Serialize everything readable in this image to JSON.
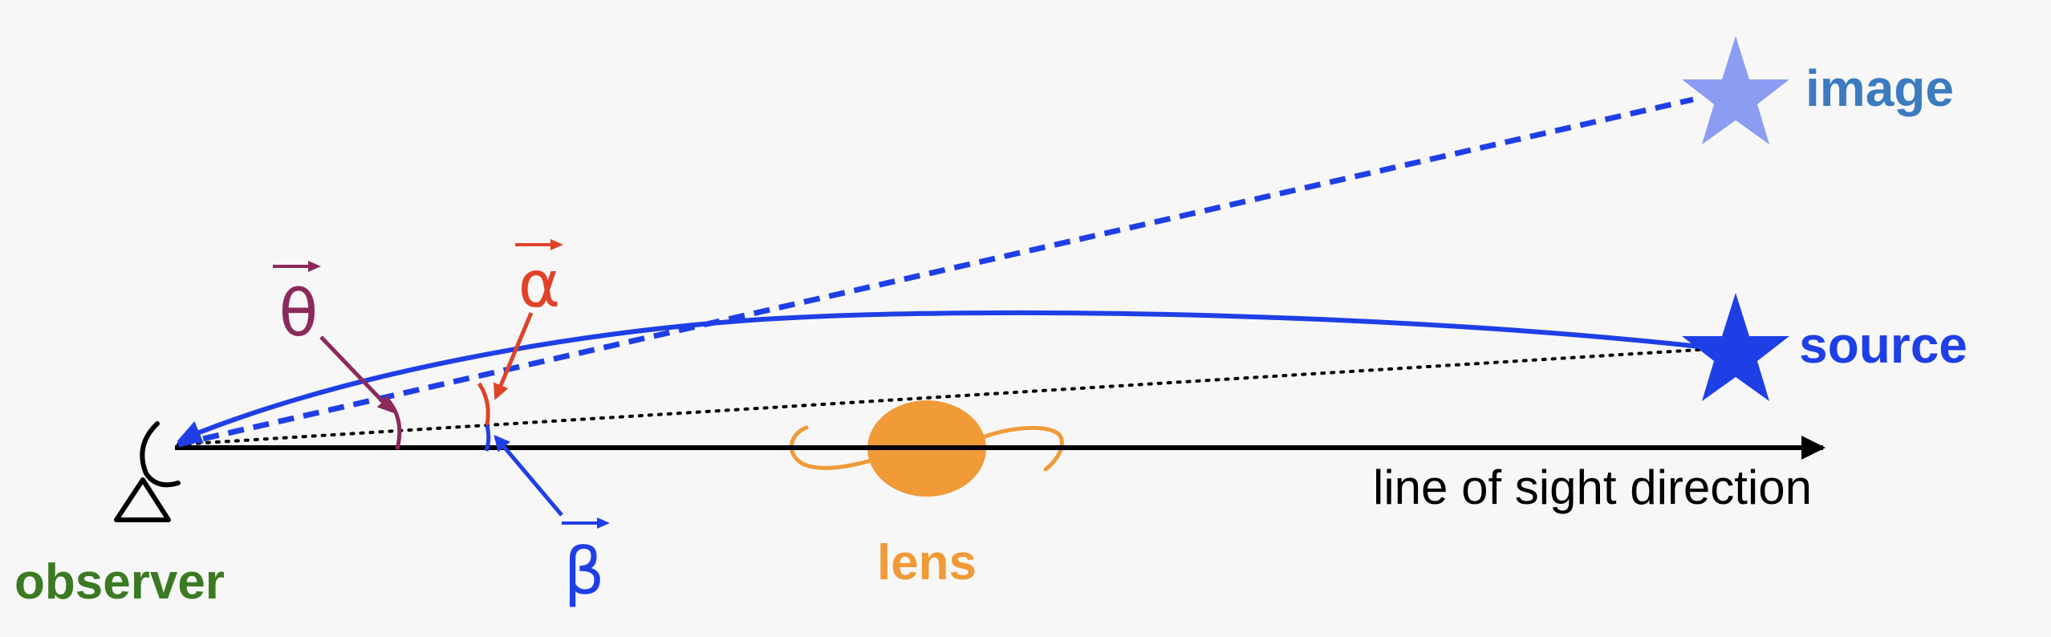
{
  "labels": {
    "image": "image",
    "source": "source",
    "line_of_sight": "line of sight direction",
    "lens": "lens",
    "observer": "observer",
    "theta": "θ",
    "alpha": "α",
    "beta": "β"
  },
  "colors": {
    "background": "#f7f7f7",
    "axis": "#000000",
    "light_path": "#1f3fe6",
    "image_star": "#8a9df2",
    "image_label": "#3b7bc0",
    "source_star": "#1f3fe6",
    "source_label": "#1f3fe6",
    "lens": "#f09a38",
    "observer": "#3b7a22",
    "theta": "#8b2a5c",
    "alpha": "#e04328",
    "beta": "#1f3fe6"
  },
  "icons": {
    "observer": "telescope-icon",
    "image": "star-icon",
    "source": "star-icon",
    "lens": "galaxy-icon"
  }
}
